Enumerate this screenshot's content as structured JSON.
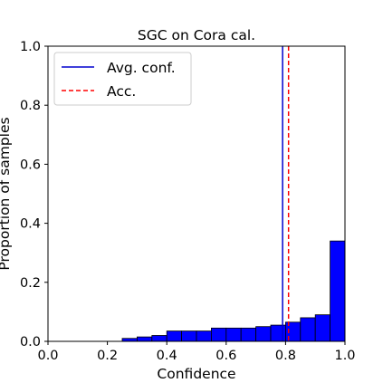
{
  "chart_data": {
    "type": "bar",
    "title": "SGC on Cora cal.",
    "xlabel": "Confidence",
    "ylabel": "Proportion of samples",
    "xlim": [
      0.0,
      1.0
    ],
    "ylim": [
      0.0,
      1.0
    ],
    "xticks": [
      "0.0",
      "0.2",
      "0.4",
      "0.6",
      "0.8",
      "1.0"
    ],
    "yticks": [
      "0.0",
      "0.2",
      "0.4",
      "0.6",
      "0.8",
      "1.0"
    ],
    "bin_edges": [
      0.0,
      0.05,
      0.1,
      0.15,
      0.2,
      0.25,
      0.3,
      0.35,
      0.4,
      0.45,
      0.5,
      0.55,
      0.6,
      0.65,
      0.7,
      0.75,
      0.8,
      0.85,
      0.9,
      0.95,
      1.0
    ],
    "values": [
      0.0,
      0.0,
      0.0,
      0.0,
      0.0,
      0.01,
      0.015,
      0.02,
      0.035,
      0.035,
      0.035,
      0.045,
      0.045,
      0.045,
      0.05,
      0.055,
      0.065,
      0.08,
      0.09,
      0.34
    ],
    "bar_color": "#0000ff",
    "bar_edge_color": "#000000",
    "reference_lines": [
      {
        "name": "Avg. conf.",
        "x": 0.79,
        "color": "#0000cd",
        "style": "solid"
      },
      {
        "name": "Acc.",
        "x": 0.81,
        "color": "#ff0000",
        "style": "dashed"
      }
    ],
    "legend": [
      "Avg. conf.",
      "Acc."
    ],
    "legend_position": "top-left",
    "grid": false
  }
}
